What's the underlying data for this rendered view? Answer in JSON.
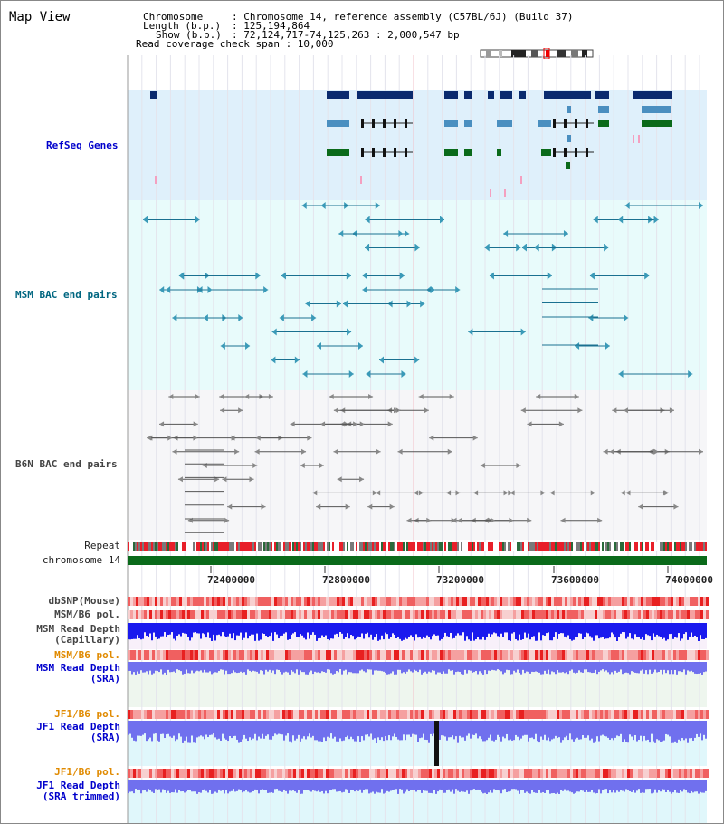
{
  "title": "Map View",
  "header": {
    "chromosome_key": "Chromosome",
    "chromosome_value": ": Chromosome 14, reference assembly (C57BL/6J) (Build 37)",
    "length_key": "Length (b.p.)",
    "length_value": ": 125,194,864",
    "show_key": "Show (b.p.)",
    "show_value": ": 72,124,717-74,125,263 : 2,000,547 bp",
    "coverage_text": "Read coverage check span : 10,000"
  },
  "tracks": {
    "refseq_label": "RefSeq Genes",
    "msm_bac_label": "MSM BAC end pairs",
    "b6n_bac_label": "B6N BAC end pairs",
    "repeat_label": "Repeat",
    "chromosome_label": "chromosome 14",
    "dbsnp_label": "dbSNP(Mouse)",
    "msm_b6_pol_label": "MSM/B6 pol.",
    "msm_read_depth_cap_label_1": "MSM Read Depth",
    "msm_read_depth_cap_label_2": "(Capillary)",
    "msm_b6_pol2_label": "MSM/B6 pol.",
    "msm_read_depth_sra_label_1": "MSM Read Depth",
    "msm_read_depth_sra_label_2": "(SRA)",
    "jf1_b6_pol_label": "JF1/B6 pol.",
    "jf1_read_depth_label_1": "JF1 Read Depth",
    "jf1_read_depth_label_2": "(SRA)",
    "jf1_b6_pol2_label": "JF1/B6 pol.",
    "jf1_read_depth_trim_label_1": "JF1 Read Depth",
    "jf1_read_depth_trim_label_2": "(SRA trimmed)"
  },
  "axis": {
    "ticks": [
      "72400000",
      "72800000",
      "73200000",
      "73600000",
      "74000000"
    ]
  },
  "colors": {
    "refseq_bg": "#dff0fb",
    "msm_bac_bg": "#e8fbfb",
    "b6n_bac_bg": "#f6f6f8",
    "navy_gene": "#0a2a6e",
    "steel_gene": "#4a8fc0",
    "green_gene": "#0a6a1a",
    "chromosome_green": "#0a6a1a",
    "label_blue": "#0000cc",
    "label_teal": "#006680",
    "label_orange": "#e08a00",
    "label_grey": "#333333",
    "depth_blue": "#1a1aee",
    "depth_light": "#7070ee",
    "pol_red": "#f05050"
  }
}
